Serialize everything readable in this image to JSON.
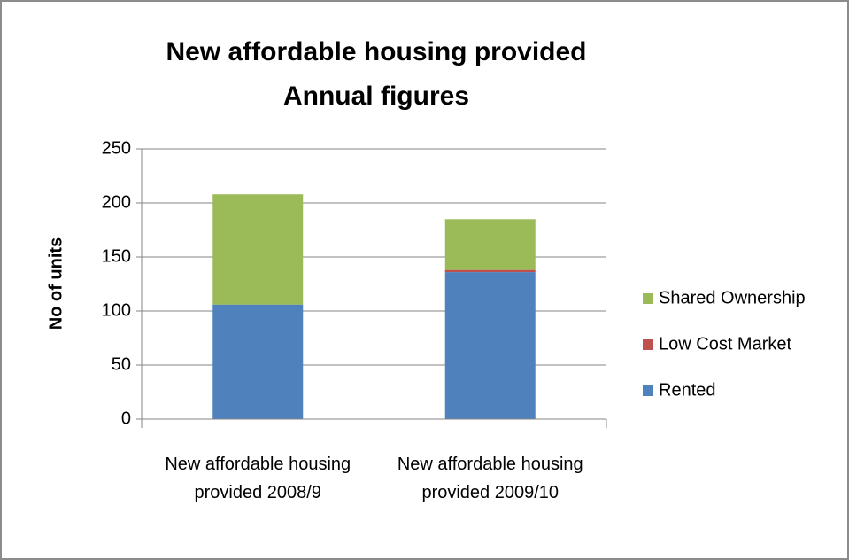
{
  "chart_data": {
    "type": "stacked_bar",
    "title": [
      "New affordable housing provided",
      "Annual figures"
    ],
    "y_label": "No of units",
    "categories": [
      "New affordable housing provided 2008/9",
      "New affordable housing provided 2009/10"
    ],
    "series": [
      {
        "name": "Rented",
        "color": "#4f81bd",
        "values": [
          106,
          136
        ]
      },
      {
        "name": "Low Cost Market",
        "color": "#c0504d",
        "values": [
          0,
          2
        ]
      },
      {
        "name": "Shared Ownership",
        "color": "#9bbb59",
        "values": [
          102,
          47
        ]
      }
    ],
    "ylim": [
      0,
      250
    ],
    "yticks": [
      0,
      50,
      100,
      150,
      200,
      250
    ],
    "grid": true,
    "legend": "right"
  }
}
